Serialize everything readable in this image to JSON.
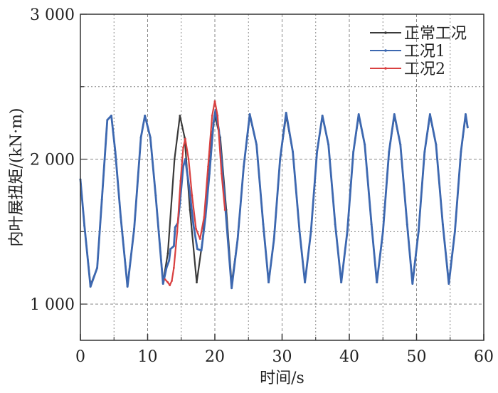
{
  "chart_data": {
    "type": "line",
    "xlabel": "时间/s",
    "ylabel": "内叶展扭矩/(kN·m)",
    "xlim": [
      0,
      60
    ],
    "ylim": [
      750,
      3000
    ],
    "x_ticks": [
      0,
      10,
      20,
      30,
      40,
      50,
      60
    ],
    "x_tick_labels": [
      "0",
      "10",
      "20",
      "30",
      "40",
      "50",
      "60"
    ],
    "y_ticks": [
      1000,
      2000,
      3000
    ],
    "y_tick_labels": [
      "1 000",
      "2 000",
      "3 000"
    ],
    "grid": true,
    "legend_position": "top-right",
    "series": [
      {
        "name": "正常工况",
        "color": "#3a3a3a",
        "points": [
          [
            0,
            1860
          ],
          [
            0.6,
            1540
          ],
          [
            1.5,
            1130
          ],
          [
            2.5,
            1250
          ],
          [
            3.2,
            1720
          ],
          [
            4,
            2270
          ],
          [
            4.6,
            2300
          ],
          [
            5.2,
            2050
          ],
          [
            6,
            1600
          ],
          [
            7,
            1130
          ],
          [
            8,
            1520
          ],
          [
            9,
            2150
          ],
          [
            9.6,
            2300
          ],
          [
            10.4,
            2150
          ],
          [
            11.2,
            1750
          ],
          [
            12.3,
            1150
          ],
          [
            13,
            1350
          ],
          [
            14,
            2000
          ],
          [
            14.8,
            2300
          ],
          [
            15.5,
            2150
          ],
          [
            16.3,
            1650
          ],
          [
            17.3,
            1150
          ],
          [
            18.2,
            1450
          ],
          [
            19.2,
            2050
          ],
          [
            20,
            2300
          ],
          [
            20.8,
            2150
          ],
          [
            21.7,
            1650
          ],
          [
            22.5,
            1140
          ],
          [
            23.4,
            1450
          ],
          [
            24.3,
            1950
          ],
          [
            25.2,
            2300
          ],
          [
            26.2,
            2100
          ],
          [
            27.2,
            1550
          ],
          [
            28,
            1150
          ],
          [
            28.8,
            1450
          ],
          [
            29.7,
            2000
          ],
          [
            30.6,
            2300
          ],
          [
            31.6,
            2050
          ],
          [
            32.6,
            1500
          ],
          [
            33.4,
            1150
          ],
          [
            34.3,
            1500
          ],
          [
            35.2,
            2050
          ],
          [
            36,
            2300
          ],
          [
            36.9,
            2100
          ],
          [
            37.9,
            1550
          ],
          [
            38.8,
            1150
          ],
          [
            39.7,
            1500
          ],
          [
            40.6,
            2050
          ],
          [
            41.4,
            2300
          ],
          [
            42.3,
            2100
          ],
          [
            43.3,
            1550
          ],
          [
            44.1,
            1150
          ],
          [
            45,
            1500
          ],
          [
            45.9,
            2050
          ],
          [
            46.7,
            2300
          ],
          [
            47.6,
            2100
          ],
          [
            48.6,
            1550
          ],
          [
            49.4,
            1150
          ],
          [
            50.3,
            1500
          ],
          [
            51.2,
            2050
          ],
          [
            52,
            2300
          ],
          [
            52.9,
            2100
          ],
          [
            53.9,
            1550
          ],
          [
            54.8,
            1150
          ],
          [
            55.7,
            1500
          ],
          [
            56.6,
            2050
          ],
          [
            57.3,
            2300
          ],
          [
            57.6,
            2220
          ]
        ]
      },
      {
        "name": "工况1",
        "color": "#3d68b0",
        "points": [
          [
            0,
            1860
          ],
          [
            0.6,
            1540
          ],
          [
            1.5,
            1120
          ],
          [
            2.5,
            1250
          ],
          [
            3.2,
            1720
          ],
          [
            4,
            2270
          ],
          [
            4.6,
            2300
          ],
          [
            5.2,
            2050
          ],
          [
            6,
            1600
          ],
          [
            7,
            1120
          ],
          [
            8,
            1520
          ],
          [
            9,
            2150
          ],
          [
            9.6,
            2300
          ],
          [
            10.4,
            2150
          ],
          [
            11.2,
            1750
          ],
          [
            12.3,
            1140
          ],
          [
            12.8,
            1250
          ],
          [
            13.2,
            1300
          ],
          [
            13.4,
            1380
          ],
          [
            13.9,
            1400
          ],
          [
            14.1,
            1530
          ],
          [
            14.5,
            1560
          ],
          [
            14.8,
            1700
          ],
          [
            15.3,
            1950
          ],
          [
            15.6,
            2000
          ],
          [
            16.2,
            1800
          ],
          [
            16.8,
            1550
          ],
          [
            17.4,
            1380
          ],
          [
            18,
            1370
          ],
          [
            18.6,
            1600
          ],
          [
            19.2,
            1900
          ],
          [
            19.8,
            2250
          ],
          [
            20.1,
            2340
          ],
          [
            20.6,
            2200
          ],
          [
            21.5,
            1700
          ],
          [
            22.5,
            1110
          ],
          [
            23.4,
            1450
          ],
          [
            24.3,
            1950
          ],
          [
            25.2,
            2310
          ],
          [
            26.2,
            2100
          ],
          [
            27.2,
            1550
          ],
          [
            28,
            1150
          ],
          [
            28.8,
            1450
          ],
          [
            29.7,
            2000
          ],
          [
            30.6,
            2320
          ],
          [
            31.6,
            2050
          ],
          [
            32.6,
            1500
          ],
          [
            33.4,
            1150
          ],
          [
            34.3,
            1500
          ],
          [
            35.2,
            2050
          ],
          [
            36,
            2300
          ],
          [
            36.9,
            2100
          ],
          [
            37.9,
            1550
          ],
          [
            38.8,
            1150
          ],
          [
            39.7,
            1500
          ],
          [
            40.6,
            2050
          ],
          [
            41.4,
            2310
          ],
          [
            42.3,
            2100
          ],
          [
            43.3,
            1550
          ],
          [
            44.1,
            1150
          ],
          [
            45,
            1500
          ],
          [
            45.9,
            2050
          ],
          [
            46.7,
            2310
          ],
          [
            47.6,
            2100
          ],
          [
            48.6,
            1550
          ],
          [
            49.4,
            1140
          ],
          [
            50.3,
            1500
          ],
          [
            51.2,
            2050
          ],
          [
            52,
            2310
          ],
          [
            52.9,
            2100
          ],
          [
            53.9,
            1550
          ],
          [
            54.8,
            1140
          ],
          [
            55.7,
            1500
          ],
          [
            56.6,
            2050
          ],
          [
            57.3,
            2310
          ],
          [
            57.6,
            2220
          ]
        ]
      },
      {
        "name": "工况2",
        "color": "#d94040",
        "points": [
          [
            12.6,
            1170
          ],
          [
            13.0,
            1150
          ],
          [
            13.3,
            1130
          ],
          [
            13.6,
            1160
          ],
          [
            13.9,
            1250
          ],
          [
            14.4,
            1500
          ],
          [
            14.9,
            1850
          ],
          [
            15.3,
            2080
          ],
          [
            15.6,
            2140
          ],
          [
            16.1,
            2000
          ],
          [
            16.6,
            1750
          ],
          [
            17.2,
            1520
          ],
          [
            17.8,
            1450
          ],
          [
            18.4,
            1600
          ],
          [
            19.0,
            1950
          ],
          [
            19.6,
            2300
          ],
          [
            20.0,
            2400
          ],
          [
            20.4,
            2300
          ],
          [
            21.0,
            1900
          ],
          [
            21.5,
            1650
          ]
        ]
      }
    ]
  }
}
